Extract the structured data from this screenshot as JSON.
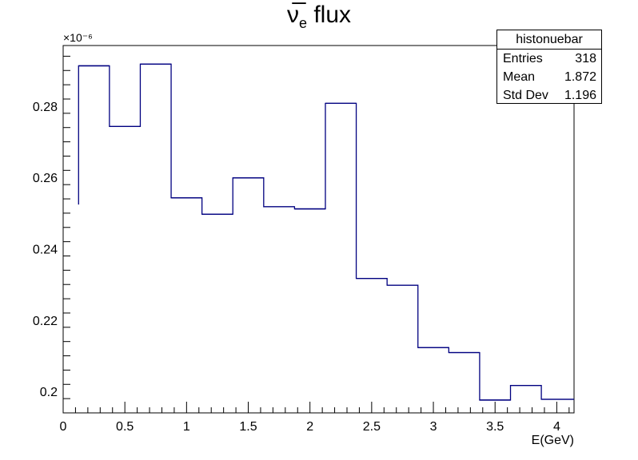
{
  "chart_data": {
    "type": "histogram",
    "title": "ν̅e flux",
    "xlabel": "E(GeV)",
    "ylabel": "",
    "y_exponent_label": "×10⁻⁶",
    "xlim": [
      0,
      4.14
    ],
    "ylim": [
      0.194,
      0.297
    ],
    "bin_edges": [
      0.125,
      0.375,
      0.625,
      0.875,
      1.125,
      1.375,
      1.625,
      1.875,
      2.125,
      2.375,
      2.625,
      2.875,
      3.125,
      3.375,
      3.625,
      3.875,
      4.14
    ],
    "values": [
      0.2913,
      0.2743,
      0.2918,
      0.2543,
      0.2497,
      0.2599,
      0.2518,
      0.2512,
      0.2808,
      0.2317,
      0.2298,
      0.2123,
      0.2109,
      0.1976,
      0.2017,
      0.1978
    ],
    "y_start_value": 0.2524,
    "xticks": [
      "0",
      "0.5",
      "1",
      "1.5",
      "2",
      "2.5",
      "3",
      "3.5",
      "4"
    ],
    "xtick_values": [
      0,
      0.5,
      1,
      1.5,
      2,
      2.5,
      3,
      3.5,
      4
    ],
    "yticks": [
      "0.2",
      "0.22",
      "0.24",
      "0.26",
      "0.28"
    ],
    "ytick_values": [
      0.2,
      0.22,
      0.24,
      0.26,
      0.28
    ],
    "line_color": "#000080",
    "grid": false
  },
  "stats_box": {
    "name": "histonuebar",
    "entries_label": "Entries",
    "entries_value": "318",
    "mean_label": "Mean",
    "mean_value": "1.872",
    "std_label": "Std Dev",
    "std_value": "1.196"
  }
}
